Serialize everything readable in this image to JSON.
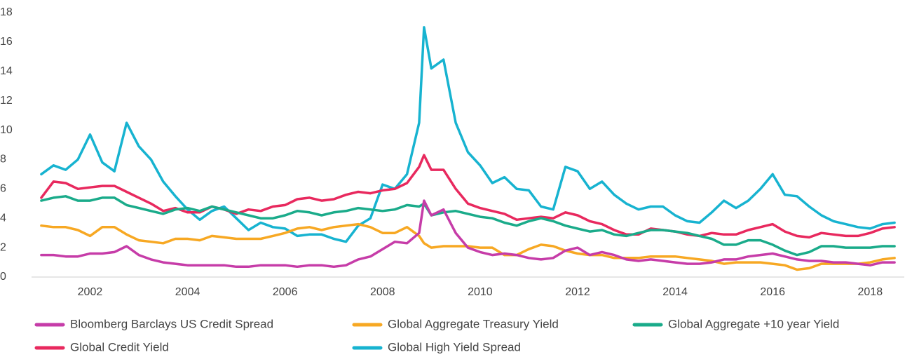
{
  "chart_data": {
    "type": "line",
    "x": [
      2001,
      2001.25,
      2001.5,
      2001.75,
      2002,
      2002.25,
      2002.5,
      2002.75,
      2003,
      2003.25,
      2003.5,
      2003.75,
      2004,
      2004.25,
      2004.5,
      2004.75,
      2005,
      2005.25,
      2005.5,
      2005.75,
      2006,
      2006.25,
      2006.5,
      2006.75,
      2007,
      2007.25,
      2007.5,
      2007.75,
      2008,
      2008.25,
      2008.5,
      2008.75,
      2008.85,
      2009,
      2009.25,
      2009.5,
      2009.75,
      2010,
      2010.25,
      2010.5,
      2010.75,
      2011,
      2011.25,
      2011.5,
      2011.75,
      2012,
      2012.25,
      2012.5,
      2012.75,
      2013,
      2013.25,
      2013.5,
      2013.75,
      2014,
      2014.25,
      2014.5,
      2014.75,
      2015,
      2015.25,
      2015.5,
      2015.75,
      2016,
      2016.25,
      2016.5,
      2016.75,
      2017,
      2017.25,
      2017.5,
      2017.75,
      2018,
      2018.25,
      2018.5
    ],
    "xlim": [
      2000.8,
      2018.7
    ],
    "xticks": [
      2002,
      2004,
      2006,
      2008,
      2010,
      2012,
      2014,
      2016,
      2018
    ],
    "ylim": [
      0,
      18
    ],
    "yticks": [
      0,
      2,
      4,
      6,
      8,
      10,
      12,
      14,
      16,
      18
    ],
    "grid": false,
    "legend": "bottom",
    "series": [
      {
        "name": "Bloomberg Barclays US Credit Spread",
        "color": "#c63ca8",
        "values": [
          1.5,
          1.5,
          1.4,
          1.4,
          1.6,
          1.6,
          1.7,
          2.1,
          1.5,
          1.2,
          1.0,
          0.9,
          0.8,
          0.8,
          0.8,
          0.8,
          0.7,
          0.7,
          0.8,
          0.8,
          0.8,
          0.7,
          0.8,
          0.8,
          0.7,
          0.8,
          1.2,
          1.4,
          1.9,
          2.4,
          2.3,
          3.0,
          5.2,
          4.2,
          4.6,
          3.0,
          2.0,
          1.7,
          1.5,
          1.6,
          1.5,
          1.3,
          1.2,
          1.3,
          1.8,
          2.0,
          1.5,
          1.7,
          1.5,
          1.2,
          1.1,
          1.2,
          1.1,
          1.0,
          0.9,
          0.9,
          1.0,
          1.2,
          1.2,
          1.4,
          1.5,
          1.6,
          1.4,
          1.2,
          1.1,
          1.1,
          1.0,
          1.0,
          0.9,
          0.8,
          1.0,
          1.0
        ]
      },
      {
        "name": "Global Aggregate Treasury Yield",
        "color": "#f7a823",
        "values": [
          3.5,
          3.4,
          3.4,
          3.2,
          2.8,
          3.4,
          3.4,
          2.9,
          2.5,
          2.4,
          2.3,
          2.6,
          2.6,
          2.5,
          2.8,
          2.7,
          2.6,
          2.6,
          2.6,
          2.8,
          3.0,
          3.3,
          3.4,
          3.2,
          3.4,
          3.5,
          3.6,
          3.4,
          3.0,
          3.0,
          3.4,
          2.8,
          2.3,
          2.0,
          2.1,
          2.1,
          2.1,
          2.0,
          2.0,
          1.5,
          1.5,
          1.9,
          2.2,
          2.1,
          1.8,
          1.6,
          1.5,
          1.5,
          1.3,
          1.3,
          1.3,
          1.4,
          1.4,
          1.4,
          1.3,
          1.2,
          1.1,
          0.9,
          1.0,
          1.0,
          1.0,
          0.9,
          0.8,
          0.5,
          0.6,
          0.9,
          0.9,
          0.9,
          0.9,
          1.0,
          1.2,
          1.3
        ]
      },
      {
        "name": "Global Aggregate +10 year Yield",
        "color": "#1aab8a",
        "values": [
          5.2,
          5.4,
          5.5,
          5.2,
          5.2,
          5.4,
          5.4,
          4.9,
          4.7,
          4.5,
          4.3,
          4.6,
          4.7,
          4.5,
          4.8,
          4.6,
          4.4,
          4.2,
          4.0,
          4.0,
          4.2,
          4.5,
          4.4,
          4.2,
          4.4,
          4.5,
          4.7,
          4.6,
          4.5,
          4.6,
          4.9,
          4.8,
          5.0,
          4.2,
          4.4,
          4.5,
          4.3,
          4.1,
          4.0,
          3.7,
          3.5,
          3.8,
          4.0,
          3.8,
          3.5,
          3.3,
          3.1,
          3.2,
          2.9,
          2.8,
          3.0,
          3.2,
          3.2,
          3.1,
          3.0,
          2.8,
          2.6,
          2.2,
          2.2,
          2.5,
          2.5,
          2.2,
          1.8,
          1.5,
          1.7,
          2.1,
          2.1,
          2.0,
          2.0,
          2.0,
          2.1,
          2.1
        ]
      },
      {
        "name": "Global Credit Yield",
        "color": "#e8295e",
        "values": [
          5.4,
          6.5,
          6.4,
          6.0,
          6.1,
          6.2,
          6.2,
          5.8,
          5.4,
          5.0,
          4.5,
          4.7,
          4.4,
          4.4,
          4.8,
          4.6,
          4.3,
          4.6,
          4.5,
          4.8,
          4.9,
          5.3,
          5.4,
          5.2,
          5.3,
          5.6,
          5.8,
          5.7,
          5.9,
          6.0,
          6.4,
          7.5,
          8.3,
          7.3,
          7.3,
          6.0,
          5.0,
          4.7,
          4.5,
          4.3,
          3.9,
          4.0,
          4.1,
          4.0,
          4.4,
          4.2,
          3.8,
          3.6,
          3.2,
          2.9,
          2.9,
          3.3,
          3.2,
          3.1,
          2.9,
          2.8,
          3.0,
          2.9,
          2.9,
          3.2,
          3.4,
          3.6,
          3.1,
          2.8,
          2.7,
          3.0,
          2.9,
          2.8,
          2.8,
          3.0,
          3.3,
          3.4
        ]
      },
      {
        "name": "Global High Yield Spread",
        "color": "#17b3d0",
        "values": [
          7.0,
          7.6,
          7.3,
          8.0,
          9.7,
          7.8,
          7.2,
          10.5,
          8.9,
          8.0,
          6.5,
          5.5,
          4.6,
          3.9,
          4.5,
          4.8,
          4.0,
          3.2,
          3.7,
          3.4,
          3.3,
          2.8,
          2.9,
          2.9,
          2.6,
          2.4,
          3.5,
          4.0,
          6.3,
          6.0,
          7.0,
          10.5,
          17.0,
          14.2,
          14.8,
          10.5,
          8.5,
          7.6,
          6.4,
          6.8,
          6.0,
          5.9,
          4.8,
          4.6,
          7.5,
          7.2,
          6.0,
          6.5,
          5.6,
          5.0,
          4.6,
          4.8,
          4.8,
          4.2,
          3.8,
          3.7,
          4.4,
          5.2,
          4.7,
          5.2,
          6.0,
          7.0,
          5.6,
          5.5,
          4.8,
          4.2,
          3.8,
          3.6,
          3.4,
          3.3,
          3.6,
          3.7
        ]
      }
    ]
  }
}
